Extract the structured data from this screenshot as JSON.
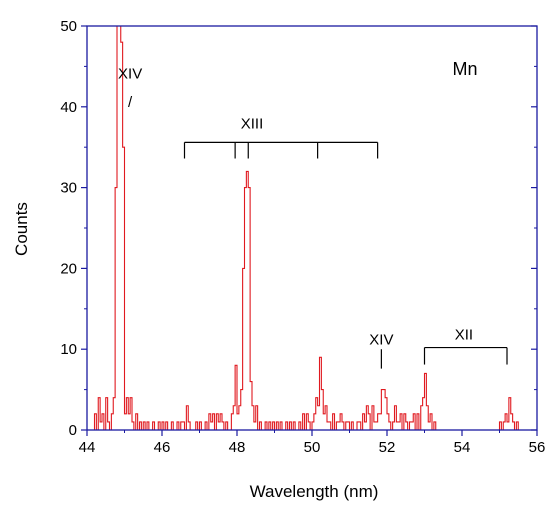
{
  "chart_data": {
    "type": "line",
    "title": "",
    "element_label": "Mn",
    "xlabel": "Wavelength (nm)",
    "ylabel": "Counts",
    "xlim": [
      44,
      56
    ],
    "ylim": [
      0,
      50
    ],
    "x_ticks": [
      44,
      46,
      48,
      50,
      52,
      54,
      56
    ],
    "y_ticks": [
      0,
      10,
      20,
      30,
      40,
      50
    ],
    "grid": false,
    "step_width": 0.05,
    "colors": {
      "series": "#e0191f",
      "frame": "#1a1aa0"
    },
    "series": [
      {
        "x": [
          44.2,
          44.25,
          44.3,
          44.35,
          44.4,
          44.45,
          44.5,
          44.55,
          44.6,
          44.65,
          44.7,
          44.75,
          44.8,
          44.85,
          44.9,
          44.95,
          45.0,
          45.05,
          45.1,
          45.15,
          45.2,
          45.25,
          45.3,
          45.35,
          45.4,
          45.45,
          45.5,
          45.55,
          45.6,
          45.65,
          45.7,
          45.75,
          45.8,
          45.85,
          45.9,
          45.95,
          46.0,
          46.05,
          46.1,
          46.15,
          46.2,
          46.25,
          46.3,
          46.35,
          46.4,
          46.45,
          46.5,
          46.55,
          46.6,
          46.65,
          46.7,
          46.75,
          46.8,
          46.85,
          46.9,
          46.95,
          47.0,
          47.05,
          47.1,
          47.15,
          47.2,
          47.25,
          47.3,
          47.35,
          47.4,
          47.45,
          47.5,
          47.55,
          47.6,
          47.65,
          47.7,
          47.75,
          47.8,
          47.85,
          47.9,
          47.95,
          48.0,
          48.05,
          48.1,
          48.15,
          48.2,
          48.25,
          48.3,
          48.35,
          48.4,
          48.45,
          48.5,
          48.55,
          48.6,
          48.65,
          48.7,
          48.75,
          48.8,
          48.85,
          48.9,
          48.95,
          49.0,
          49.05,
          49.1,
          49.15,
          49.2,
          49.25,
          49.3,
          49.35,
          49.4,
          49.45,
          49.5,
          49.55,
          49.6,
          49.65,
          49.7,
          49.75,
          49.8,
          49.85,
          49.9,
          49.95,
          50.0,
          50.05,
          50.1,
          50.15,
          50.2,
          50.25,
          50.3,
          50.35,
          50.4,
          50.45,
          50.5,
          50.55,
          50.6,
          50.65,
          50.7,
          50.75,
          50.8,
          50.85,
          50.9,
          50.95,
          51.0,
          51.05,
          51.1,
          51.15,
          51.2,
          51.25,
          51.3,
          51.35,
          51.4,
          51.45,
          51.5,
          51.55,
          51.6,
          51.65,
          51.7,
          51.75,
          51.8,
          51.85,
          51.9,
          51.95,
          52.0,
          52.05,
          52.1,
          52.15,
          52.2,
          52.25,
          52.3,
          52.35,
          52.4,
          52.45,
          52.5,
          52.55,
          52.6,
          52.65,
          52.7,
          52.75,
          52.8,
          52.85,
          52.9,
          52.95,
          53.0,
          53.05,
          53.1,
          53.15,
          53.2,
          53.25,
          53.3,
          53.35,
          53.4,
          53.45,
          53.5,
          53.55,
          53.6,
          53.65,
          53.7,
          53.75,
          53.8,
          53.85,
          53.9,
          53.95,
          54.0,
          54.05,
          54.1,
          54.15,
          54.2,
          54.25,
          54.3,
          54.35,
          54.4,
          54.45,
          54.5,
          54.55,
          54.6,
          54.65,
          54.7,
          54.75,
          54.8,
          54.85,
          54.9,
          54.95,
          55.0,
          55.05,
          55.1,
          55.15,
          55.2,
          55.25,
          55.3,
          55.35,
          55.4,
          55.45,
          55.5
        ],
        "y": [
          2,
          0,
          4,
          1,
          2,
          0,
          4,
          1,
          0,
          2,
          4,
          30,
          50,
          50,
          48,
          35,
          2,
          4,
          2,
          4,
          1,
          0,
          2,
          0,
          1,
          0,
          1,
          0,
          1,
          0,
          0,
          1,
          0,
          0,
          1,
          0,
          1,
          0,
          1,
          0,
          0,
          1,
          0,
          0,
          1,
          0,
          1,
          1,
          0,
          3,
          1,
          0,
          0,
          0,
          1,
          0,
          1,
          0,
          0,
          1,
          0,
          2,
          1,
          2,
          0,
          2,
          1,
          2,
          1,
          0,
          1,
          0,
          0,
          2,
          3,
          8,
          2,
          3,
          5,
          20,
          30,
          32,
          30,
          6,
          3,
          1,
          3,
          0,
          1,
          0,
          0,
          1,
          0,
          1,
          0,
          1,
          0,
          1,
          0,
          1,
          0,
          0,
          1,
          0,
          1,
          0,
          1,
          0,
          0,
          1,
          0,
          2,
          0,
          2,
          1,
          0,
          1,
          2,
          4,
          3,
          9,
          5,
          2,
          3,
          1,
          1,
          0,
          2,
          0,
          1,
          1,
          2,
          1,
          0,
          1,
          1,
          0,
          1,
          0,
          0,
          1,
          1,
          0,
          2,
          1,
          3,
          2,
          0,
          3,
          1,
          1,
          2,
          2,
          5,
          5,
          4,
          2,
          1,
          0,
          1,
          3,
          1,
          1,
          2,
          0,
          2,
          1,
          0,
          1,
          1,
          2,
          0,
          2,
          0,
          3,
          4,
          7,
          3,
          1,
          2,
          0,
          1,
          0,
          0,
          0,
          0,
          0,
          0,
          0,
          0,
          0,
          0,
          0,
          0,
          0,
          0,
          0,
          0,
          0,
          0,
          0,
          0,
          0,
          0,
          0,
          0,
          0,
          0,
          0,
          0,
          0,
          0,
          0,
          0,
          0,
          0,
          1,
          0,
          1,
          2,
          1,
          4,
          2,
          1,
          0,
          1,
          0
        ]
      }
    ],
    "annotations": [
      {
        "text": "XIV",
        "x": 45.15,
        "y": 43.5
      },
      {
        "text": "/",
        "x": 45.15,
        "y": 40.0
      },
      {
        "text": "XIII",
        "x": 48.4,
        "y": 37.3
      },
      {
        "text": "XIV",
        "x": 51.85,
        "y": 10.6
      },
      {
        "text": "XII",
        "x": 54.05,
        "y": 11.2
      }
    ],
    "brackets": [
      {
        "name": "XIII",
        "from": 46.6,
        "to": 51.75,
        "y": 35.6,
        "ticks": [
          46.6,
          47.95,
          48.3,
          50.15,
          51.75
        ],
        "tick_bottom": 33.6
      },
      {
        "name": "XII",
        "from": 53.0,
        "to": 55.2,
        "y": 10.2,
        "ticks": [
          53.0,
          55.2
        ],
        "tick_bottom": 8.1
      }
    ],
    "markers": [
      {
        "x": 51.85,
        "from": 10.0,
        "to": 7.6
      }
    ]
  }
}
